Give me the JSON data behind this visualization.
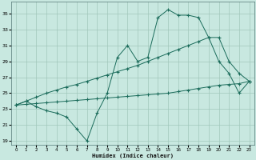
{
  "xlabel": "Humidex (Indice chaleur)",
  "bg_color": "#c8e8e0",
  "grid_color": "#a0c8bc",
  "line_color": "#1a6b5a",
  "xlim": [
    -0.5,
    23.5
  ],
  "ylim": [
    18.5,
    36.5
  ],
  "xticks": [
    0,
    1,
    2,
    3,
    4,
    5,
    6,
    7,
    8,
    9,
    10,
    11,
    12,
    13,
    14,
    15,
    16,
    17,
    18,
    19,
    20,
    21,
    22,
    23
  ],
  "yticks": [
    19,
    21,
    23,
    25,
    27,
    29,
    31,
    33,
    35
  ],
  "line1_x": [
    0,
    1,
    2,
    3,
    4,
    5,
    6,
    7,
    8,
    9,
    10,
    11,
    12,
    13,
    14,
    15,
    16,
    17,
    18,
    19,
    20,
    21,
    22,
    23
  ],
  "line1_y": [
    23.5,
    24.0,
    23.3,
    22.8,
    22.5,
    22.0,
    20.5,
    19.0,
    22.5,
    25.0,
    29.5,
    31.0,
    29.0,
    29.5,
    34.5,
    35.5,
    34.8,
    34.8,
    34.5,
    32.0,
    29.0,
    27.5,
    25.0,
    26.5
  ],
  "line2_x": [
    0,
    1,
    2,
    3,
    4,
    5,
    6,
    7,
    8,
    9,
    10,
    11,
    12,
    13,
    14,
    15,
    16,
    17,
    18,
    19,
    20,
    21,
    22,
    23
  ],
  "line2_y": [
    23.5,
    24.0,
    24.5,
    25.0,
    25.4,
    25.8,
    26.1,
    26.5,
    26.9,
    27.3,
    27.7,
    28.1,
    28.5,
    29.0,
    29.5,
    30.0,
    30.5,
    31.0,
    31.5,
    32.0,
    32.0,
    29.0,
    27.5,
    26.5
  ],
  "line3_x": [
    0,
    1,
    2,
    3,
    4,
    5,
    6,
    7,
    8,
    9,
    10,
    11,
    12,
    13,
    14,
    15,
    16,
    17,
    18,
    19,
    20,
    21,
    22,
    23
  ],
  "line3_y": [
    23.5,
    23.6,
    23.7,
    23.8,
    23.9,
    24.0,
    24.1,
    24.2,
    24.3,
    24.4,
    24.5,
    24.6,
    24.7,
    24.8,
    24.9,
    25.0,
    25.2,
    25.4,
    25.6,
    25.8,
    26.0,
    26.1,
    26.2,
    26.5
  ]
}
